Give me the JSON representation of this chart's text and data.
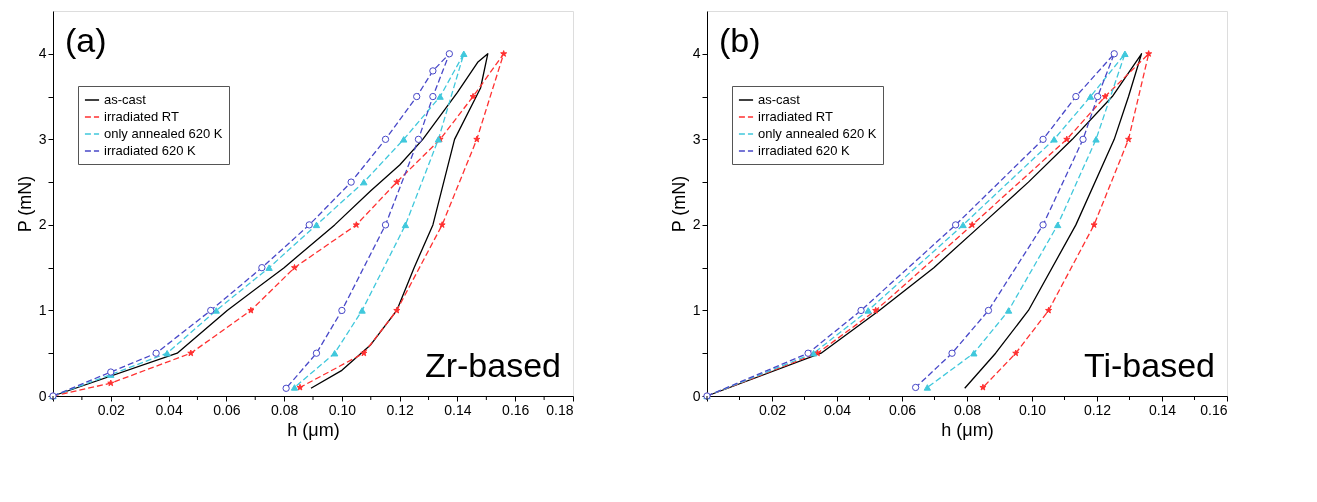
{
  "chart_data": [
    {
      "type": "line",
      "xlabel": "h (μm)",
      "ylabel": "P (mN)",
      "annotations": [
        "(a)",
        "Zr-based"
      ],
      "legend": "top left",
      "grid": false,
      "xlim": [
        0,
        0.18
      ],
      "xticks": [
        {
          "value": 0,
          "label": null
        },
        {
          "value": 0.01,
          "label": null
        },
        0.02,
        {
          "value": 0.03,
          "label": null
        },
        0.04,
        {
          "value": 0.05,
          "label": null
        },
        0.06,
        {
          "value": 0.07,
          "label": null
        },
        0.08,
        {
          "value": 0.09,
          "label": null
        },
        {
          "value": 0.1,
          "label": "0.10"
        },
        {
          "value": 0.11,
          "label": null
        },
        0.12,
        {
          "value": 0.13,
          "label": null
        },
        0.14,
        {
          "value": 0.15,
          "label": null
        },
        0.16,
        {
          "value": 0.17,
          "label": null
        },
        0.18
      ],
      "ylim": [
        0,
        4.5
      ],
      "yticks": [
        0,
        {
          "value": 0.5,
          "label": null
        },
        1,
        {
          "value": 1.5,
          "label": null
        },
        2,
        {
          "value": 2.5,
          "label": null
        },
        3,
        {
          "value": 3.5,
          "label": null
        },
        4
      ],
      "series": [
        {
          "name": "as-cast",
          "color": "#000000",
          "marker": "none",
          "line_style": "solid",
          "x": [
            0,
            0.043,
            0.0603,
            0.08,
            0.0975,
            0.11,
            0.12,
            0.128,
            0.14,
            0.147,
            0.1505,
            0.148,
            0.139,
            0.1315,
            0.125,
            0.119,
            0.11,
            0.1,
            0.0893
          ],
          "values": [
            0,
            0.5,
            1,
            1.5,
            2,
            2.4,
            2.7,
            3,
            3.55,
            3.9,
            4,
            3.6,
            3,
            2,
            1.5,
            1,
            0.6,
            0.3,
            0.09
          ]
        },
        {
          "name": "irradiated RT",
          "color": "#ff3030",
          "marker": "star",
          "line_style": "dashed",
          "x": [
            0,
            0.02,
            0.0477,
            0.0685,
            0.0836,
            0.105,
            0.119,
            0.134,
            0.1454,
            0.156,
            0.1467,
            0.1347,
            0.119,
            0.1076,
            0.0855
          ],
          "values": [
            0,
            0.15,
            0.5,
            1,
            1.5,
            2,
            2.5,
            3,
            3.5,
            4,
            3,
            2,
            1,
            0.5,
            0.1
          ]
        },
        {
          "name": "only annealed 620 K",
          "color": "#40c8dc",
          "marker": "triangle",
          "line_style": "dashed",
          "x": [
            0,
            0.02,
            0.0395,
            0.0565,
            0.0748,
            0.0912,
            0.1076,
            0.1214,
            0.134,
            0.1422,
            0.1334,
            0.122,
            0.107,
            0.0975,
            0.0836
          ],
          "values": [
            0,
            0.25,
            0.5,
            1,
            1.5,
            2,
            2.5,
            3,
            3.5,
            4,
            3,
            2,
            1,
            0.5,
            0.1
          ]
        },
        {
          "name": "irradiated 620 K",
          "color": "#4848c8",
          "marker": "circle",
          "line_style": "dashed",
          "x": [
            0,
            0.02,
            0.0357,
            0.0546,
            0.0723,
            0.0887,
            0.1032,
            0.1151,
            0.1259,
            0.1315,
            0.1372,
            0.1315,
            0.1265,
            0.1151,
            0.1,
            0.0912,
            0.0807
          ],
          "values": [
            0,
            0.28,
            0.5,
            1,
            1.5,
            2,
            2.5,
            3,
            3.5,
            3.8,
            4,
            3.5,
            3,
            2,
            1,
            0.5,
            0.09
          ]
        }
      ]
    },
    {
      "type": "line",
      "xlabel": "h (μm)",
      "ylabel": "P (mN)",
      "annotations": [
        "(b)",
        "Ti-based"
      ],
      "legend": "top left",
      "grid": false,
      "xlim": [
        0,
        0.16
      ],
      "xticks": [
        {
          "value": 0,
          "label": null
        },
        {
          "value": 0.01,
          "label": null
        },
        0.02,
        {
          "value": 0.03,
          "label": null
        },
        0.04,
        {
          "value": 0.05,
          "label": null
        },
        0.06,
        {
          "value": 0.07,
          "label": null
        },
        0.08,
        {
          "value": 0.09,
          "label": null
        },
        {
          "value": 0.1,
          "label": "0.10"
        },
        {
          "value": 0.11,
          "label": null
        },
        0.12,
        {
          "value": 0.13,
          "label": null
        },
        0.14,
        {
          "value": 0.15,
          "label": null
        },
        0.16
      ],
      "ylim": [
        0,
        4.5
      ],
      "yticks": [
        0,
        {
          "value": 0.5,
          "label": null
        },
        1,
        {
          "value": 1.5,
          "label": null
        },
        2,
        {
          "value": 2.5,
          "label": null
        },
        3,
        {
          "value": 3.5,
          "label": null
        },
        4
      ],
      "series": [
        {
          "name": "as-cast",
          "color": "#000000",
          "marker": "none",
          "line_style": "solid",
          "x": [
            0,
            0.0351,
            0.053,
            0.0698,
            0.0844,
            0.0989,
            0.1124,
            0.1247,
            0.1337,
            0.1297,
            0.1253,
            0.1135,
            0.0989,
            0.0888,
            0.0793
          ],
          "values": [
            0,
            0.5,
            1,
            1.5,
            2,
            2.5,
            3,
            3.5,
            4,
            3.5,
            3,
            2,
            1,
            0.5,
            0.09
          ]
        },
        {
          "name": "irradiated RT",
          "color": "#ff3030",
          "marker": "star",
          "line_style": "dashed",
          "x": [
            0,
            0.034,
            0.0519,
            0.0816,
            0.1107,
            0.1225,
            0.1359,
            0.1297,
            0.1191,
            0.1051,
            0.095,
            0.0849
          ],
          "values": [
            0,
            0.5,
            1,
            2,
            3,
            3.5,
            4,
            3,
            2,
            1,
            0.5,
            0.1
          ]
        },
        {
          "name": "only annealed 620 K",
          "color": "#40c8dc",
          "marker": "triangle",
          "line_style": "dashed",
          "x": [
            0,
            0.0328,
            0.0496,
            0.0788,
            0.1068,
            0.118,
            0.1286,
            0.1197,
            0.1079,
            0.0928,
            0.0821,
            0.0678
          ],
          "values": [
            0,
            0.5,
            1,
            2,
            3,
            3.5,
            4,
            3,
            2,
            1,
            0.5,
            0.1
          ]
        },
        {
          "name": "irradiated 620 K",
          "color": "#4848c8",
          "marker": "circle",
          "line_style": "dashed",
          "x": [
            0,
            0.0311,
            0.0474,
            0.0765,
            0.1034,
            0.1135,
            0.1253,
            0.1202,
            0.1157,
            0.1034,
            0.0866,
            0.0754,
            0.0642
          ],
          "values": [
            0,
            0.5,
            1,
            2,
            3,
            3.5,
            4,
            3.5,
            3,
            2,
            1,
            0.5,
            0.1
          ]
        }
      ]
    }
  ]
}
